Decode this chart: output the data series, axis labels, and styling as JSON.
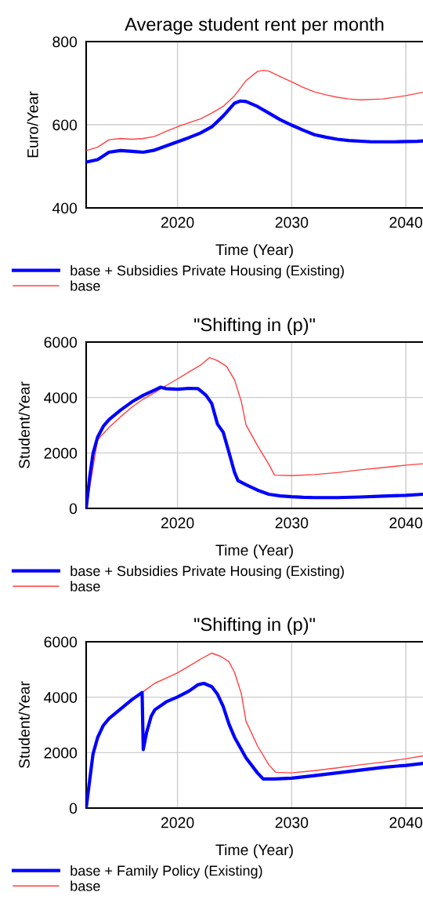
{
  "chart_data": [
    {
      "type": "line",
      "title": "Average student rent per month",
      "xlabel": "Time (Year)",
      "ylabel": "Euro/Year",
      "xlim": [
        2012,
        2041.5
      ],
      "xticks": [
        2020,
        2030,
        2040
      ],
      "ylim": [
        400,
        800
      ],
      "yticks": [
        400,
        600,
        800
      ],
      "grid": true,
      "legend": "bottom",
      "series": [
        {
          "name": "base + Subsidies Private Housing (Existing)",
          "color": "#0000ff",
          "x": [
            2012,
            2013,
            2014,
            2015,
            2016,
            2017,
            2018,
            2019,
            2020,
            2021,
            2022,
            2023,
            2024,
            2025,
            2025.5,
            2026,
            2027,
            2028,
            2029,
            2030,
            2031,
            2032,
            2033,
            2034,
            2035,
            2037,
            2039,
            2041,
            2041.5
          ],
          "values": [
            510,
            516,
            534,
            538,
            536,
            534,
            539,
            549,
            559,
            569,
            580,
            595,
            621,
            652,
            657,
            656,
            644,
            628,
            612,
            599,
            587,
            576,
            570,
            565,
            562,
            559,
            559,
            560,
            561
          ]
        },
        {
          "name": "base",
          "color": "#ff4040",
          "x": [
            2012,
            2013,
            2014,
            2015,
            2016,
            2017,
            2018,
            2019,
            2020,
            2021,
            2022,
            2023,
            2024,
            2025,
            2026,
            2027,
            2027.5,
            2028,
            2029,
            2030,
            2031,
            2032,
            2033,
            2034,
            2035,
            2036,
            2038,
            2040,
            2041.5
          ],
          "values": [
            538,
            546,
            564,
            567,
            565,
            567,
            572,
            584,
            595,
            605,
            614,
            628,
            644,
            670,
            706,
            728,
            731,
            729,
            716,
            703,
            690,
            679,
            672,
            666,
            662,
            660,
            662,
            670,
            678
          ]
        }
      ]
    },
    {
      "type": "line",
      "title": "\"Shifting in (p)\"",
      "xlabel": "Time (Year)",
      "ylabel": "Student/Year",
      "xlim": [
        2012,
        2041.5
      ],
      "xticks": [
        2020,
        2030,
        2040
      ],
      "ylim": [
        0,
        6000
      ],
      "yticks": [
        0,
        2000,
        4000,
        6000
      ],
      "grid": true,
      "legend": "bottom",
      "series": [
        {
          "name": "base + Subsidies Private Housing (Existing)",
          "color": "#0000ff",
          "x": [
            2012,
            2012.3,
            2012.6,
            2013,
            2013.5,
            2014,
            2015,
            2016,
            2017,
            2018,
            2018.5,
            2019,
            2020,
            2021,
            2021.8,
            2022.5,
            2023,
            2023.5,
            2024,
            2024.5,
            2025,
            2025.3,
            2026,
            2027,
            2028,
            2029,
            2030,
            2031,
            2032,
            2034,
            2036,
            2038,
            2040,
            2041.5
          ],
          "values": [
            0,
            1100,
            1980,
            2570,
            2960,
            3200,
            3540,
            3840,
            4080,
            4270,
            4370,
            4320,
            4300,
            4330,
            4320,
            4080,
            3780,
            3040,
            2750,
            2030,
            1290,
            1000,
            850,
            660,
            510,
            450,
            420,
            400,
            390,
            390,
            410,
            440,
            470,
            510
          ]
        },
        {
          "name": "base",
          "color": "#ff4040",
          "x": [
            2012,
            2013,
            2014,
            2015,
            2016,
            2017,
            2018,
            2019,
            2020,
            2021,
            2022,
            2022.8,
            2023.5,
            2024.3,
            2025,
            2025.6,
            2026,
            2027,
            2028,
            2028.5,
            2030,
            2032,
            2034,
            2036,
            2038,
            2040,
            2041.5
          ],
          "values": [
            0,
            2470,
            2920,
            3300,
            3650,
            3940,
            4180,
            4430,
            4670,
            4920,
            5160,
            5440,
            5330,
            5120,
            4630,
            3840,
            3010,
            2270,
            1590,
            1200,
            1180,
            1220,
            1290,
            1390,
            1470,
            1560,
            1610
          ]
        }
      ]
    },
    {
      "type": "line",
      "title": "\"Shifting in (p)\"",
      "xlabel": "Time (Year)",
      "ylabel": "Student/Year",
      "xlim": [
        2012,
        2041.5
      ],
      "xticks": [
        2020,
        2030,
        2040
      ],
      "ylim": [
        0,
        6000
      ],
      "yticks": [
        0,
        2000,
        4000,
        6000
      ],
      "grid": true,
      "legend": "bottom",
      "series": [
        {
          "name": "base + Family Policy (Existing)",
          "color": "#0000ff",
          "x": [
            2012,
            2012.3,
            2012.6,
            2013,
            2013.5,
            2014,
            2015,
            2016,
            2016.9,
            2017,
            2017.3,
            2017.7,
            2018,
            2019,
            2020,
            2021,
            2021.8,
            2022.3,
            2023,
            2023.5,
            2024,
            2024.5,
            2025,
            2026,
            2027,
            2027.5,
            2028.5,
            2030,
            2032,
            2034,
            2036,
            2038,
            2040,
            2041.5
          ],
          "values": [
            0,
            980,
            1950,
            2540,
            2980,
            3230,
            3570,
            3910,
            4170,
            2110,
            2740,
            3320,
            3540,
            3830,
            4010,
            4220,
            4450,
            4500,
            4380,
            4110,
            3670,
            3040,
            2550,
            1810,
            1270,
            1050,
            1050,
            1080,
            1170,
            1270,
            1370,
            1470,
            1540,
            1610
          ]
        },
        {
          "name": "base",
          "color": "#ff4040",
          "x": [
            2016.9,
            2018,
            2019,
            2020,
            2021,
            2022,
            2023,
            2023.8,
            2024.5,
            2025,
            2025.6,
            2026,
            2027,
            2028,
            2028.6,
            2030,
            2032,
            2034,
            2036,
            2038,
            2040,
            2041.5
          ],
          "values": [
            4170,
            4500,
            4690,
            4880,
            5120,
            5370,
            5590,
            5470,
            5280,
            4890,
            4110,
            3130,
            2250,
            1560,
            1290,
            1270,
            1350,
            1450,
            1560,
            1660,
            1780,
            1880
          ]
        }
      ]
    }
  ]
}
